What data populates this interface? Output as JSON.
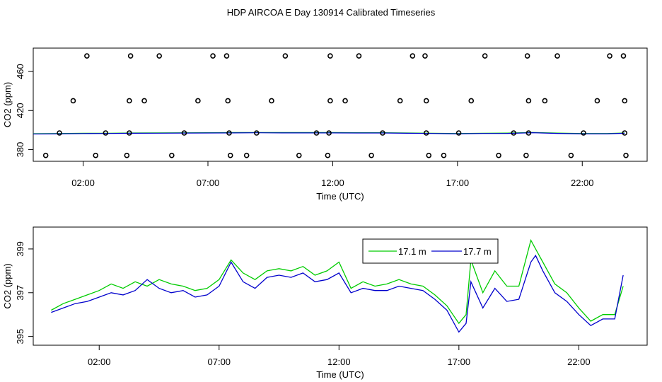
{
  "figure": {
    "title": "HDP AIRCOA E  Day 130914  Calibrated Timeseries"
  },
  "colors": {
    "series_17_1": "#00cc00",
    "series_17_7": "#0000cc",
    "flags": "#000000"
  },
  "chart_data": [
    {
      "type": "scatter",
      "title": "",
      "xlabel": "Time (UTC)",
      "ylabel": "CO2 (ppm)",
      "xlim": [
        0,
        24.6
      ],
      "ylim": [
        368,
        484
      ],
      "x_ticks": [
        {
          "v": 2,
          "label": "02:00"
        },
        {
          "v": 7,
          "label": "07:00"
        },
        {
          "v": 12,
          "label": "12:00"
        },
        {
          "v": 17,
          "label": "17:00"
        },
        {
          "v": 22,
          "label": "22:00"
        }
      ],
      "y_ticks": [
        {
          "v": 380,
          "label": "380"
        },
        {
          "v": 420,
          "label": "420"
        },
        {
          "v": 460,
          "label": "460"
        }
      ],
      "point_series": [
        {
          "y": 476,
          "x": [
            2.15,
            3.9,
            5.05,
            7.2,
            7.75,
            10.1,
            11.9,
            13.05,
            15.2,
            15.7,
            18.1,
            19.8,
            21.0,
            23.1,
            23.65
          ]
        },
        {
          "y": 430,
          "x": [
            1.6,
            3.85,
            4.45,
            6.6,
            7.8,
            9.55,
            11.9,
            12.5,
            14.7,
            15.75,
            17.55,
            19.85,
            20.5,
            22.6,
            23.7
          ]
        },
        {
          "y": 397,
          "x": [
            1.05,
            2.9,
            3.85,
            6.05,
            7.85,
            8.95,
            11.35,
            11.85,
            14.0,
            15.75,
            17.05,
            19.25,
            19.85,
            22.05,
            23.7
          ]
        },
        {
          "y": 374,
          "x": [
            0.5,
            2.5,
            3.75,
            5.55,
            7.9,
            8.55,
            10.65,
            11.8,
            13.55,
            15.85,
            16.45,
            18.65,
            19.75,
            21.55,
            23.75
          ]
        }
      ],
      "line_series": [
        {
          "x": [
            0,
            1,
            2,
            3,
            4,
            5,
            6,
            7,
            8,
            9,
            10,
            11,
            12,
            13,
            14,
            15,
            16,
            17,
            18,
            19,
            20,
            21,
            22,
            23,
            23.7
          ],
          "values": [
            396.3,
            396.5,
            396.7,
            396.8,
            397.0,
            397.1,
            397.2,
            397.3,
            397.4,
            397.5,
            397.4,
            397.4,
            397.4,
            397.3,
            397.3,
            397.0,
            396.8,
            396.5,
            396.8,
            396.9,
            397.6,
            396.9,
            396.5,
            396.5,
            397.0
          ]
        }
      ]
    },
    {
      "type": "line",
      "title": "",
      "xlabel": "Time (UTC)",
      "ylabel": "CO2 (ppm)",
      "xlim": [
        -0.75,
        24.85
      ],
      "ylim": [
        394.6,
        400.0
      ],
      "x_ticks": [
        {
          "v": 2,
          "label": "02:00"
        },
        {
          "v": 7,
          "label": "07:00"
        },
        {
          "v": 12,
          "label": "12:00"
        },
        {
          "v": 17,
          "label": "17:00"
        },
        {
          "v": 22,
          "label": "22:00"
        }
      ],
      "y_ticks": [
        {
          "v": 395,
          "label": "395"
        },
        {
          "v": 397,
          "label": "397"
        },
        {
          "v": 399,
          "label": "399"
        }
      ],
      "legend": {
        "position": "top-right",
        "entries": [
          "17.1 m",
          "17.7 m"
        ]
      },
      "series": [
        {
          "name": "17.1 m",
          "x": [
            0,
            0.5,
            1,
            1.5,
            2,
            2.5,
            3,
            3.5,
            4,
            4.5,
            5,
            5.5,
            6,
            6.5,
            7,
            7.5,
            8,
            8.5,
            9,
            9.5,
            10,
            10.5,
            11,
            11.5,
            12,
            12.5,
            13,
            13.5,
            14,
            14.5,
            15,
            15.5,
            16,
            16.5,
            17,
            17.3,
            17.5,
            18,
            18.5,
            19,
            19.5,
            20,
            20.2,
            20.5,
            21,
            21.5,
            22,
            22.5,
            23,
            23.5,
            23.85
          ],
          "values": [
            396.2,
            396.5,
            396.7,
            396.9,
            397.1,
            397.4,
            397.2,
            397.5,
            397.3,
            397.6,
            397.4,
            397.3,
            397.1,
            397.2,
            397.6,
            398.5,
            397.9,
            397.6,
            398.0,
            398.1,
            398.0,
            398.2,
            397.8,
            398.0,
            398.4,
            397.2,
            397.5,
            397.3,
            397.4,
            397.6,
            397.4,
            397.3,
            396.9,
            396.4,
            395.6,
            396.0,
            398.5,
            397.0,
            398.0,
            397.3,
            397.3,
            399.4,
            399.0,
            398.4,
            397.4,
            397.0,
            396.3,
            395.7,
            396.0,
            396.0,
            397.3
          ]
        },
        {
          "name": "17.7 m",
          "x": [
            0,
            0.5,
            1,
            1.5,
            2,
            2.5,
            3,
            3.5,
            4,
            4.5,
            5,
            5.5,
            6,
            6.5,
            7,
            7.5,
            8,
            8.5,
            9,
            9.5,
            10,
            10.5,
            11,
            11.5,
            12,
            12.5,
            13,
            13.5,
            14,
            14.5,
            15,
            15.5,
            16,
            16.5,
            17,
            17.3,
            17.5,
            18,
            18.5,
            19,
            19.5,
            20,
            20.2,
            20.5,
            21,
            21.5,
            22,
            22.5,
            23,
            23.5,
            23.85
          ],
          "values": [
            396.1,
            396.3,
            396.5,
            396.6,
            396.8,
            397.0,
            396.9,
            397.1,
            397.6,
            397.2,
            397.0,
            397.1,
            396.8,
            396.9,
            397.3,
            398.4,
            397.5,
            397.2,
            397.7,
            397.8,
            397.7,
            397.9,
            397.5,
            397.6,
            397.9,
            397.0,
            397.2,
            397.1,
            397.1,
            397.3,
            397.2,
            397.1,
            396.7,
            396.2,
            395.2,
            395.6,
            397.5,
            396.3,
            397.2,
            396.6,
            396.7,
            398.4,
            398.7,
            398.0,
            397.0,
            396.6,
            396.0,
            395.5,
            395.8,
            395.8,
            397.8
          ]
        }
      ]
    }
  ]
}
